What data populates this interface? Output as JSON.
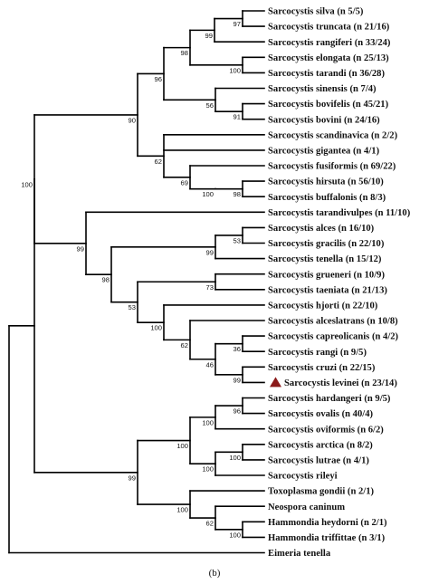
{
  "caption": "(b)",
  "highlight_color": "#8b1a1a",
  "highlight_icon": "triangle-marker-icon",
  "taxa": [
    "Sarcocystis silva (n 5/5)",
    "Sarcocystis truncata (n 21/16)",
    "Sarcocystis rangiferi (n 33/24)",
    "Sarcocystis elongata (n 25/13)",
    "Sarcocystis tarandi (n 36/28)",
    "Sarcocystis sinensis (n 7/4)",
    "Sarcocystis bovifelis (n 45/21)",
    "Sarcocystis bovini (n 24/16)",
    "Sarcocystis scandinavica (n 2/2)",
    "Sarcocystis gigantea (n 4/1)",
    "Sarcocystis fusiformis (n 69/22)",
    "Sarcocystis hirsuta (n 56/10)",
    "Sarcocystis buffalonis (n 8/3)",
    "Sarcocystis tarandivulpes (n 11/10)",
    "Sarcocystis alces (n 16/10)",
    "Sarcocystis gracilis (n 22/10)",
    "Sarcocystis tenella (n 15/12)",
    "Sarcocystis grueneri (n 10/9)",
    "Sarcocystis taeniata (n 21/13)",
    "Sarcocystis hjorti (n 22/10)",
    "Sarcocystis alceslatrans (n 10/8)",
    "Sarcocystis capreolicanis (n 4/2)",
    "Sarcocystis rangi (n 9/5)",
    "Sarcocystis cruzi (n 22/15)",
    "Sarcocystis levinei (n 23/14)",
    "Sarcocystis hardangeri (n 9/5)",
    "Sarcocystis ovalis (n 40/4)",
    "Sarcocystis oviformis (n 6/2)",
    "Sarcocystis arctica (n 8/2)",
    "Sarcocystis lutrae (n 4/1)",
    "Sarcocystis rileyi",
    "Toxoplasma gondii (n 2/1)",
    "Neospora caninum",
    "Hammondia heydorni (n 2/1)",
    "Hammondia triffittae (n 3/1)",
    "Eimeria tenella"
  ],
  "nodes": [
    {
      "id": "n_silva_trunc",
      "children": [
        "t0",
        "t1"
      ],
      "support": "97"
    },
    {
      "id": "n_A1",
      "children": [
        "n_silva_trunc",
        "t2"
      ],
      "support": "99"
    },
    {
      "id": "n_elong_tar",
      "children": [
        "t3",
        "t4"
      ],
      "support": "100"
    },
    {
      "id": "n_A2",
      "children": [
        "n_A1",
        "n_elong_tar"
      ],
      "support": "98"
    },
    {
      "id": "n_bovif_bovini",
      "children": [
        "t6",
        "t7"
      ],
      "support": "91"
    },
    {
      "id": "n_sinensis",
      "children": [
        "t5",
        "n_bovif_bovini"
      ],
      "support": "56"
    },
    {
      "id": "n_A3",
      "children": [
        "n_A2",
        "n_sinensis"
      ],
      "support": "96"
    },
    {
      "id": "n_hirs_buff",
      "children": [
        "t11",
        "t12"
      ],
      "support": "98"
    },
    {
      "id": "n_hirs_top",
      "children": [
        "t11x",
        "n_hirs_buff"
      ],
      "support": "100"
    },
    {
      "id": "n_fus",
      "children": [
        "t10",
        "n_hirs_top"
      ],
      "support": "69"
    },
    {
      "id": "n_gig",
      "children": [
        "t8",
        "t9",
        "n_fus"
      ],
      "support": "62"
    },
    {
      "id": "n_A4",
      "children": [
        "n_A3",
        "n_gig"
      ],
      "support": "90"
    },
    {
      "id": "n_alces_grac",
      "children": [
        "t14",
        "t15"
      ],
      "support": "53"
    },
    {
      "id": "n_alces_ten",
      "children": [
        "n_alces_grac",
        "t16"
      ],
      "support": "99"
    },
    {
      "id": "n_grue_taen",
      "children": [
        "t17",
        "t18"
      ],
      "support": "73"
    },
    {
      "id": "n_cruzi_lev",
      "children": [
        "t23",
        "t24"
      ],
      "support": "99"
    },
    {
      "id": "n_capr_rangi",
      "children": [
        "t21",
        "t22"
      ],
      "support": "36"
    },
    {
      "id": "n_capr_cruzi",
      "children": [
        "n_capr_rangi",
        "n_cruzi_lev"
      ],
      "support": "46"
    },
    {
      "id": "n_alcesl",
      "children": [
        "t20",
        "n_capr_cruzi"
      ],
      "support": "62"
    },
    {
      "id": "n_hjorti",
      "children": [
        "t19",
        "n_alcesl"
      ],
      "support": "100"
    },
    {
      "id": "n_grue_hj",
      "children": [
        "n_grue_taen",
        "n_hjorti"
      ],
      "support": "53"
    },
    {
      "id": "n_B1",
      "children": [
        "n_alces_ten",
        "n_grue_hj"
      ],
      "support": "98"
    },
    {
      "id": "n_B2",
      "children": [
        "t13",
        "n_B1"
      ],
      "support": "99"
    },
    {
      "id": "n_AB",
      "children": [
        "n_A4",
        "n_B2"
      ],
      "support": "100"
    },
    {
      "id": "n_hard_oval",
      "children": [
        "t25",
        "t26"
      ],
      "support": "96"
    },
    {
      "id": "n_hard",
      "children": [
        "n_hard_oval",
        "t27"
      ],
      "support": "100"
    },
    {
      "id": "n_arc_lut",
      "children": [
        "t28",
        "t29"
      ],
      "support": "100"
    },
    {
      "id": "n_arc",
      "children": [
        "n_arc_lut",
        "t30"
      ],
      "support": "100"
    },
    {
      "id": "n_sarc2",
      "children": [
        "n_hard",
        "n_arc"
      ],
      "support": "100"
    },
    {
      "id": "n_hamm",
      "children": [
        "t33",
        "t34"
      ],
      "support": "100"
    },
    {
      "id": "n_neo",
      "children": [
        "t32",
        "n_hamm"
      ],
      "support": "62"
    },
    {
      "id": "n_toxo",
      "children": [
        "t31",
        "n_neo"
      ],
      "support": "100"
    },
    {
      "id": "n_C",
      "children": [
        "n_sarc2",
        "n_toxo"
      ],
      "support": "99"
    }
  ]
}
